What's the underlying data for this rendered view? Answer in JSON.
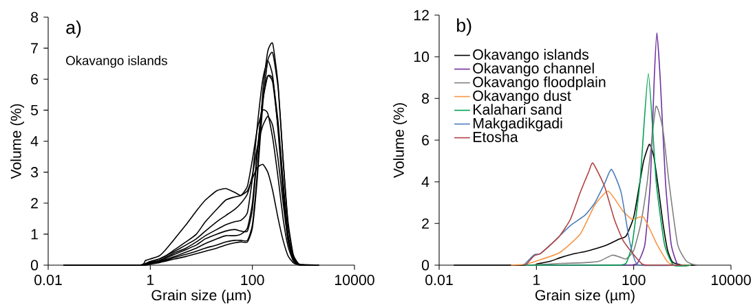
{
  "chart_data": [
    {
      "type": "line",
      "title": "a)",
      "xlabel": "Grain size (µm)",
      "ylabel": "Volume (%)",
      "log": "x",
      "xlim": [
        0.01,
        10000
      ],
      "xticks": [
        0.01,
        1,
        100,
        10000
      ],
      "ylim": [
        0,
        8
      ],
      "yticks": [
        0,
        1,
        2,
        3,
        4,
        5,
        6,
        7,
        8
      ],
      "annotations": [
        "Okavango islands"
      ],
      "x": [
        0.02,
        0.6,
        0.8,
        1,
        1.5,
        2,
        3,
        5,
        8,
        12,
        20,
        30,
        45,
        60,
        80,
        100,
        125,
        160,
        200,
        250,
        320,
        400,
        500,
        630,
        800,
        1000,
        2000
      ],
      "series": [
        {
          "color": "#000000",
          "values": [
            0,
            0,
            0.15,
            0.2,
            0.3,
            0.5,
            0.85,
            1.3,
            1.75,
            2.1,
            2.4,
            2.47,
            2.35,
            2.25,
            2.55,
            3.4,
            4.4,
            5.0,
            4.9,
            4.1,
            2.8,
            1.5,
            0.6,
            0.15,
            0.02,
            0,
            0
          ]
        },
        {
          "color": "#000000",
          "values": [
            0,
            0,
            0.05,
            0.12,
            0.2,
            0.3,
            0.5,
            0.75,
            1.0,
            1.4,
            1.8,
            2.1,
            2.2,
            2.25,
            2.4,
            2.8,
            3.15,
            3.25,
            3.0,
            2.4,
            1.5,
            0.8,
            0.3,
            0.08,
            0.01,
            0,
            0
          ]
        },
        {
          "color": "#000000",
          "values": [
            0,
            0,
            0.05,
            0.1,
            0.2,
            0.3,
            0.45,
            0.65,
            0.85,
            1.1,
            1.4,
            1.6,
            1.8,
            2.0,
            2.3,
            2.9,
            3.8,
            4.5,
            4.8,
            4.5,
            3.4,
            2.0,
            0.8,
            0.2,
            0.02,
            0,
            0
          ]
        },
        {
          "color": "#000000",
          "values": [
            0,
            0,
            0.03,
            0.08,
            0.15,
            0.25,
            0.4,
            0.55,
            0.75,
            0.95,
            1.15,
            1.3,
            1.4,
            1.45,
            1.7,
            2.8,
            4.5,
            6.0,
            6.6,
            6.1,
            4.3,
            2.3,
            0.8,
            0.15,
            0.02,
            0,
            0
          ]
        },
        {
          "color": "#000000",
          "values": [
            0,
            0,
            0.02,
            0.07,
            0.14,
            0.22,
            0.35,
            0.5,
            0.65,
            0.85,
            1.0,
            1.1,
            1.15,
            1.1,
            1.1,
            1.8,
            3.6,
            5.4,
            6.1,
            5.9,
            4.4,
            2.5,
            0.9,
            0.2,
            0.02,
            0,
            0
          ]
        },
        {
          "color": "#000000",
          "values": [
            0,
            0,
            0.02,
            0.06,
            0.12,
            0.18,
            0.28,
            0.42,
            0.55,
            0.7,
            0.85,
            0.95,
            0.95,
            1.0,
            1.2,
            2.0,
            3.7,
            5.3,
            6.1,
            6.0,
            4.6,
            2.7,
            1.0,
            0.25,
            0.03,
            0,
            0
          ]
        },
        {
          "color": "#000000",
          "values": [
            0,
            0,
            0.01,
            0.05,
            0.1,
            0.15,
            0.25,
            0.35,
            0.45,
            0.55,
            0.65,
            0.75,
            0.8,
            0.8,
            0.8,
            1.3,
            3.0,
            5.6,
            6.9,
            7.15,
            5.8,
            3.4,
            1.3,
            0.3,
            0.03,
            0,
            0
          ]
        },
        {
          "color": "#000000",
          "values": [
            0,
            0,
            0,
            0.03,
            0.08,
            0.13,
            0.2,
            0.28,
            0.37,
            0.45,
            0.55,
            0.65,
            0.72,
            0.75,
            0.75,
            1.2,
            2.8,
            5.2,
            6.6,
            6.85,
            5.7,
            3.4,
            1.4,
            0.35,
            0.05,
            0.02,
            0
          ]
        }
      ]
    },
    {
      "type": "line",
      "title": "b)",
      "xlabel": "Grain size (µm)",
      "ylabel": "Volume (%)",
      "log": "x",
      "xlim": [
        0.01,
        10000
      ],
      "xticks": [
        0.01,
        1,
        100,
        10000
      ],
      "ylim": [
        0,
        12
      ],
      "yticks": [
        0,
        2,
        4,
        6,
        8,
        10,
        12
      ],
      "legend": "top left",
      "series": [
        {
          "name": "Okavango islands",
          "color": "#000000",
          "x": [
            0.02,
            0.8,
            1,
            2,
            3,
            6,
            10,
            16,
            30,
            50,
            70,
            100,
            130,
            160,
            210,
            260,
            330,
            400,
            500,
            630,
            1000,
            2000
          ],
          "values": [
            0,
            0,
            0.05,
            0.2,
            0.35,
            0.55,
            0.65,
            0.78,
            1.0,
            1.25,
            1.4,
            2.3,
            3.8,
            5.0,
            5.8,
            5.2,
            3.5,
            2.0,
            0.7,
            0.15,
            0,
            0
          ]
        },
        {
          "name": "Okavango channel",
          "color": "#7030a0",
          "x": [
            0.6,
            10,
            80,
            120,
            170,
            220,
            265,
            300,
            350,
            450,
            590,
            820,
            1500
          ],
          "values": [
            0,
            0,
            0,
            0.1,
            1.0,
            4.0,
            9.0,
            11.15,
            9.0,
            4.0,
            1.0,
            0,
            0
          ]
        },
        {
          "name": "Okavango floodplain",
          "color": "#808080",
          "x": [
            0.6,
            1,
            3,
            10,
            20,
            36,
            50,
            70,
            100,
            140,
            190,
            285,
            400,
            530,
            800,
            1200,
            1800,
            3000
          ],
          "values": [
            0,
            0.02,
            0.08,
            0.12,
            0.2,
            0.48,
            0.4,
            0.3,
            0.7,
            2.0,
            4.0,
            7.6,
            6.5,
            4.0,
            1.0,
            0.2,
            0.02,
            0
          ]
        },
        {
          "name": "Okavango dust",
          "color": "#f79646",
          "x": [
            0.3,
            0.6,
            1,
            3,
            8,
            16,
            30,
            60,
            93,
            160,
            300,
            500,
            750,
            1500
          ],
          "values": [
            0,
            0.05,
            0.2,
            0.6,
            1.5,
            2.9,
            3.55,
            2.6,
            2.2,
            2.3,
            1.0,
            0.15,
            0,
            0
          ]
        },
        {
          "name": "Kalahari sand",
          "color": "#00a050",
          "x": [
            0.6,
            10,
            50,
            70,
            93,
            135,
            200,
            290,
            430,
            660,
            1500
          ],
          "values": [
            0,
            0,
            0,
            0.1,
            1.0,
            4.0,
            9.2,
            4.0,
            1.0,
            0,
            0
          ]
        },
        {
          "name": "Makgadikgadi",
          "color": "#4a7ebb",
          "x": [
            0.55,
            0.9,
            1.2,
            2,
            3,
            5,
            10,
            16,
            25,
            35,
            55,
            80,
            100,
            130,
            1000
          ],
          "values": [
            0,
            0.5,
            0.55,
            1.0,
            1.4,
            1.9,
            2.4,
            3.0,
            3.9,
            4.6,
            3.5,
            1.3,
            0.4,
            0,
            0
          ]
        },
        {
          "name": "Etosha",
          "color": "#b04040",
          "x": [
            0.6,
            0.9,
            1.2,
            2,
            3,
            5,
            8,
            12,
            14.5,
            25,
            40,
            60,
            100,
            150,
            200,
            1000
          ],
          "values": [
            0,
            0.45,
            0.55,
            1.0,
            1.4,
            2.2,
            3.5,
            4.5,
            4.9,
            3.8,
            2.2,
            1.2,
            0.5,
            0.05,
            0,
            0
          ]
        }
      ]
    }
  ]
}
